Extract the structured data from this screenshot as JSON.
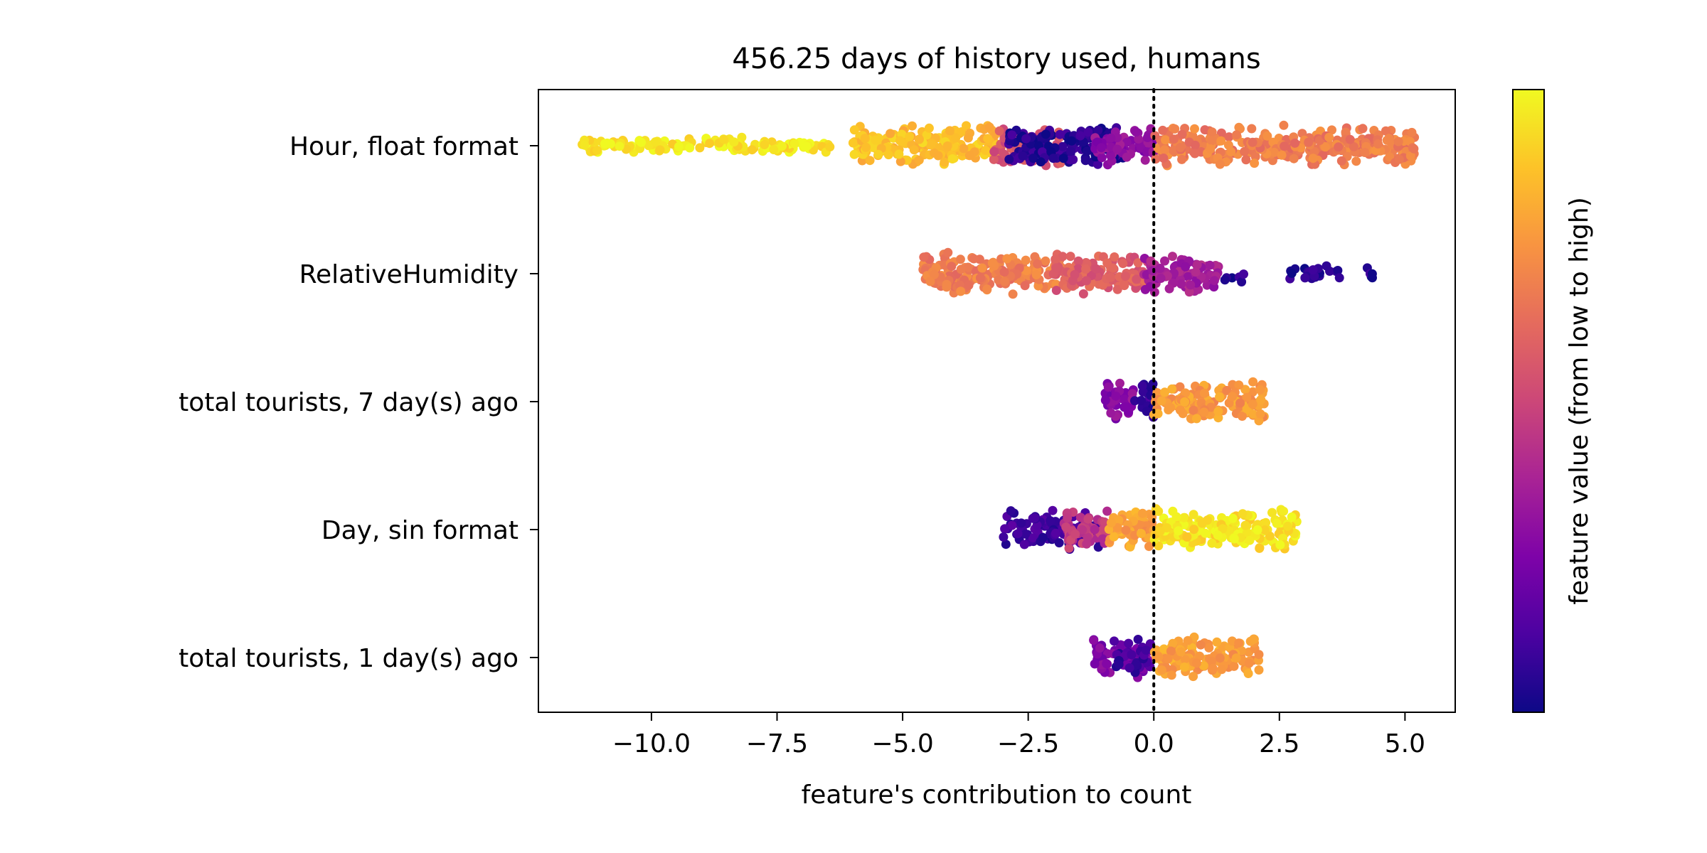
{
  "chart_data": {
    "type": "scatter",
    "subtype": "beeswarm",
    "title": "456.25 days of history used, humans",
    "xlabel": "feature's contribution to count",
    "ylabel": "",
    "xlim": [
      -12.25,
      6.0
    ],
    "xticks": [
      -10.0,
      -7.5,
      -5.0,
      -2.5,
      0.0,
      2.5,
      5.0
    ],
    "xtick_labels": [
      "−10.0",
      "−7.5",
      "−5.0",
      "−2.5",
      "0.0",
      "2.5",
      "5.0"
    ],
    "reference_line": {
      "x": 0.0,
      "style": "dotted"
    },
    "grid": false,
    "colormap": "plasma",
    "colorbar_label": "feature value (from low to high)",
    "categories": [
      "Hour, float format",
      "RelativeHumidity",
      "total tourists, 7 day(s) ago",
      "Day, sin format",
      "total tourists, 1 day(s) ago"
    ],
    "series": [
      {
        "category": "Hour, float format",
        "clusters": [
          {
            "from": -11.4,
            "to": -6.4,
            "value": 0.96,
            "density": 0.45
          },
          {
            "from": -6.0,
            "to": -3.0,
            "value": 0.86,
            "density": 1.0
          },
          {
            "from": -3.2,
            "to": -1.8,
            "value": 0.55,
            "density": 0.9
          },
          {
            "from": -2.9,
            "to": -0.6,
            "value": 0.05,
            "density": 1.0
          },
          {
            "from": -1.2,
            "to": 0.0,
            "value": 0.3,
            "density": 1.0
          },
          {
            "from": 0.0,
            "to": 5.2,
            "value": 0.68,
            "density": 1.0
          }
        ]
      },
      {
        "category": "RelativeHumidity",
        "clusters": [
          {
            "from": -4.6,
            "to": -1.8,
            "value": 0.68,
            "density": 1.0
          },
          {
            "from": -2.0,
            "to": 0.0,
            "value": 0.58,
            "density": 1.0
          },
          {
            "from": -0.2,
            "to": 1.3,
            "value": 0.36,
            "density": 1.0
          },
          {
            "from": 1.4,
            "to": 1.8,
            "value": 0.06,
            "density": 0.2
          },
          {
            "from": 2.7,
            "to": 3.7,
            "value": 0.04,
            "density": 0.35
          },
          {
            "from": 4.2,
            "to": 4.4,
            "value": 0.04,
            "density": 0.35
          }
        ]
      },
      {
        "category": "total tourists, 7 day(s) ago",
        "clusters": [
          {
            "from": -1.0,
            "to": -0.4,
            "value": 0.28,
            "density": 1.0
          },
          {
            "from": -0.4,
            "to": 0.0,
            "value": 0.08,
            "density": 1.0
          },
          {
            "from": 0.0,
            "to": 2.2,
            "value": 0.76,
            "density": 1.0
          }
        ]
      },
      {
        "category": "Day, sin format",
        "clusters": [
          {
            "from": -3.0,
            "to": -1.0,
            "value": 0.1,
            "density": 0.8
          },
          {
            "from": -1.8,
            "to": -0.8,
            "value": 0.45,
            "density": 0.9
          },
          {
            "from": -0.9,
            "to": 0.0,
            "value": 0.78,
            "density": 1.0
          },
          {
            "from": 0.0,
            "to": 2.9,
            "value": 0.95,
            "density": 1.0
          }
        ]
      },
      {
        "category": "total tourists, 1 day(s) ago",
        "clusters": [
          {
            "from": -1.2,
            "to": -0.1,
            "value": 0.25,
            "density": 1.0
          },
          {
            "from": -0.8,
            "to": 0.0,
            "value": 0.1,
            "density": 0.6
          },
          {
            "from": 0.0,
            "to": 2.1,
            "value": 0.78,
            "density": 1.0
          }
        ]
      }
    ]
  }
}
